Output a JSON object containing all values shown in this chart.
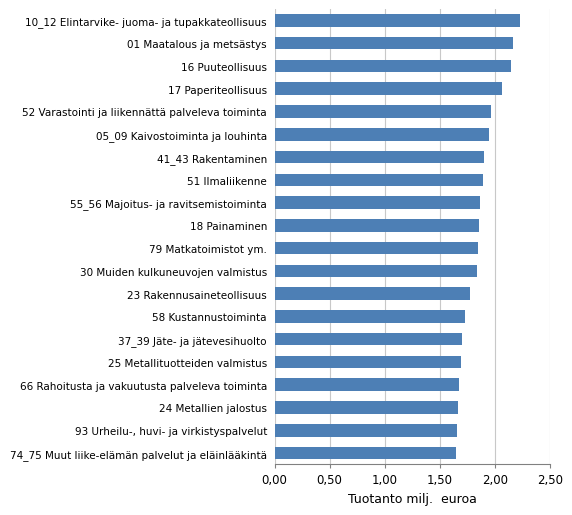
{
  "categories": [
    "74_75 Muut liike-elämän palvelut ja eläinlääkintä",
    "93 Urheilu-, huvi- ja virkistyspalvelut",
    "24 Metallien jalostus",
    "66 Rahoitusta ja vakuutusta palveleva toiminta",
    "25 Metallituotteiden valmistus",
    "37_39 Jäte- ja jätevesihuolto",
    "58 Kustannustoiminta",
    "23 Rakennusaineteollisuus",
    "30 Muiden kulkuneuvojen valmistus",
    "79 Matkatoimistot ym.",
    "18 Painaminen",
    "55_56 Majoitus- ja ravitsemistoiminta",
    "51 Ilmaliikenne",
    "41_43 Rakentaminen",
    "05_09 Kaivostoiminta ja louhinta",
    "52 Varastointi ja liikennättä palveleva toiminta",
    "17 Paperiteollisuus",
    "16 Puuteollisuus",
    "01 Maatalous ja metsästys",
    "10_12 Elintarvike- juoma- ja tupakkateollisuus"
  ],
  "values": [
    1.65,
    1.66,
    1.67,
    1.68,
    1.69,
    1.7,
    1.73,
    1.78,
    1.84,
    1.85,
    1.86,
    1.87,
    1.89,
    1.9,
    1.95,
    1.97,
    2.07,
    2.15,
    2.17,
    2.23
  ],
  "bar_color": "#4d7fb5",
  "xlabel": "Tuotanto milj.  euroa",
  "xlim": [
    0,
    2.5
  ],
  "xticks": [
    0.0,
    0.5,
    1.0,
    1.5,
    2.0,
    2.5
  ],
  "xtick_labels": [
    "0,00",
    "0,50",
    "1,00",
    "1,50",
    "2,00",
    "2,50"
  ],
  "background_color": "#ffffff",
  "grid_color": "#c8c8c8",
  "label_fontsize": 7.5,
  "xlabel_fontsize": 9,
  "tick_fontsize": 8.5,
  "bar_height": 0.55
}
